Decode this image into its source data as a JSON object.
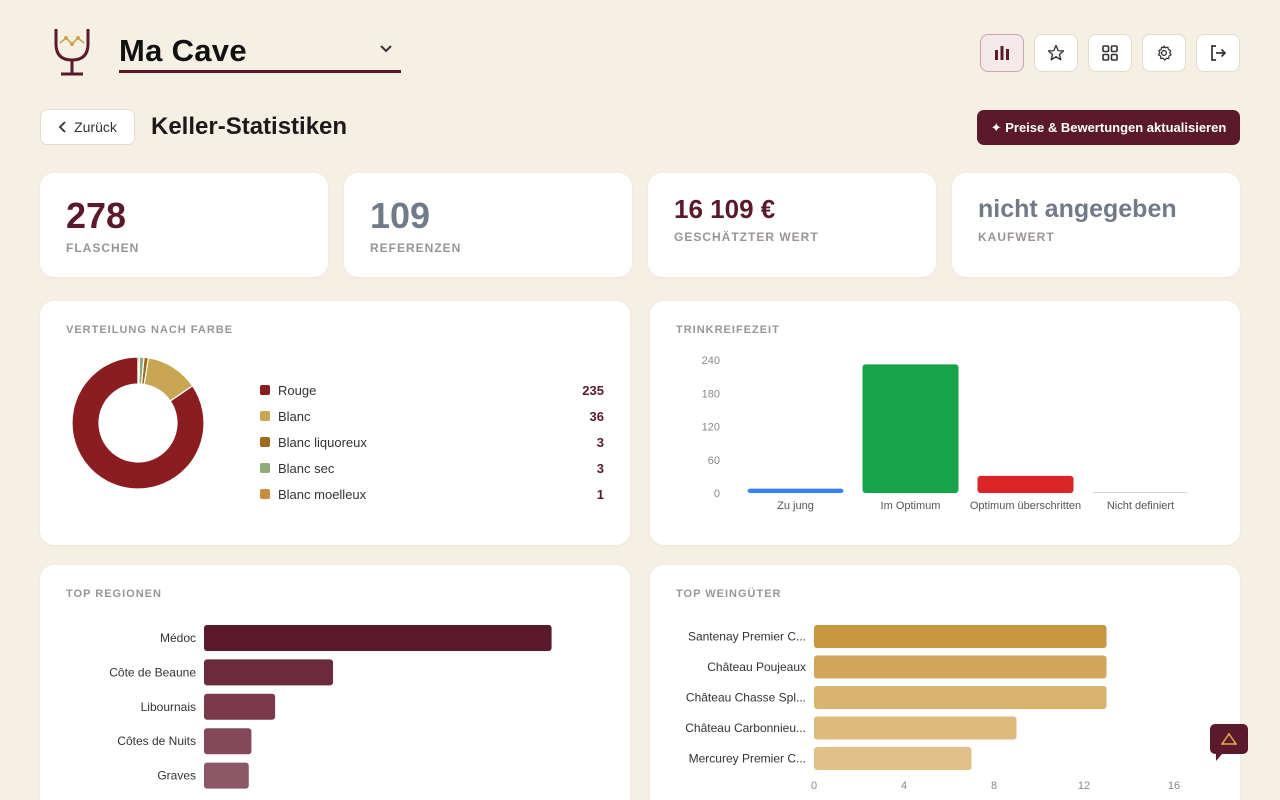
{
  "header": {
    "cellar_name": "Ma Cave",
    "icons": [
      "stats-icon",
      "star-icon",
      "grid-icon",
      "settings-icon",
      "logout-icon"
    ]
  },
  "toolbar": {
    "back_label": "Zurück",
    "page_title": "Keller-Statistiken",
    "update_label": "✦ Preise & Bewertungen aktualisieren"
  },
  "stats": {
    "bottles": {
      "value": "278",
      "label": "FLASCHEN"
    },
    "references": {
      "value": "109",
      "label": "REFERENZEN"
    },
    "estimated": {
      "value": "16 109 €",
      "label": "GESCHÄTZTER WERT"
    },
    "purchase": {
      "value": "nicht angegeben",
      "label": "KAUFWERT"
    }
  },
  "colors": {
    "accent": "#5b1a2c",
    "background": "#f5efe4",
    "rouge": "#8b1c1f",
    "blanc": "#c9a752",
    "blanc_liquoreux": "#9c6b1e",
    "blanc_sec": "#8fab79",
    "blanc_moelleux": "#c98d40"
  },
  "color_distribution": {
    "title": "VERTEILUNG NACH FARBE",
    "items": [
      {
        "label": "Rouge",
        "count": "235",
        "value": 235,
        "color": "#8b1c1f"
      },
      {
        "label": "Blanc",
        "count": "36",
        "value": 36,
        "color": "#c9a752"
      },
      {
        "label": "Blanc liquoreux",
        "count": "3",
        "value": 3,
        "color": "#9c6b1e"
      },
      {
        "label": "Blanc sec",
        "count": "3",
        "value": 3,
        "color": "#8fab79"
      },
      {
        "label": "Blanc moelleux",
        "count": "1",
        "value": 1,
        "color": "#c98d40"
      }
    ]
  },
  "panels": {
    "maturity_title": "TRINKREIFEZEIT",
    "regions_title": "TOP REGIONEN",
    "estates_title": "TOP WEINGÜTER"
  },
  "chart_data": [
    {
      "type": "pie",
      "categories": [
        "Rouge",
        "Blanc",
        "Blanc liquoreux",
        "Blanc sec",
        "Blanc moelleux"
      ],
      "values": [
        235,
        36,
        3,
        3,
        1
      ]
    },
    {
      "type": "bar",
      "categories": [
        "Zu jung",
        "Im Optimum",
        "Optimum überschritten",
        "Nicht definiert"
      ],
      "values": [
        8,
        232,
        31,
        1
      ],
      "colors": [
        "#3b82f6",
        "#16a34a",
        "#dc2626",
        "#d1d5db"
      ],
      "yticks": [
        "0",
        "60",
        "120",
        "180",
        "240"
      ],
      "ylim": [
        0,
        240
      ]
    },
    {
      "type": "bar",
      "orientation": "horizontal",
      "categories": [
        "Médoc",
        "Côte de Beaune",
        "Libournais",
        "Côtes de Nuits",
        "Graves"
      ],
      "values": [
        132,
        49,
        27,
        18,
        17
      ],
      "xlim": [
        0,
        150
      ],
      "colors": [
        "#5b1a2c",
        "#6c2a3d",
        "#7a3a4c",
        "#83495a",
        "#8c5867"
      ]
    },
    {
      "type": "bar",
      "orientation": "horizontal",
      "categories": [
        "Santenay Premier C...",
        "Château Poujeaux",
        "Château Chasse Spl...",
        "Château Carbonnieu...",
        "Mercurey Premier C..."
      ],
      "values": [
        13,
        13,
        13,
        9,
        7
      ],
      "xlim": [
        0,
        16
      ],
      "xticks": [
        "0",
        "4",
        "8",
        "12",
        "16"
      ],
      "colors": [
        "#c9973f",
        "#d1a55a",
        "#d8b46f",
        "#deba7d",
        "#e2c08a"
      ]
    }
  ]
}
